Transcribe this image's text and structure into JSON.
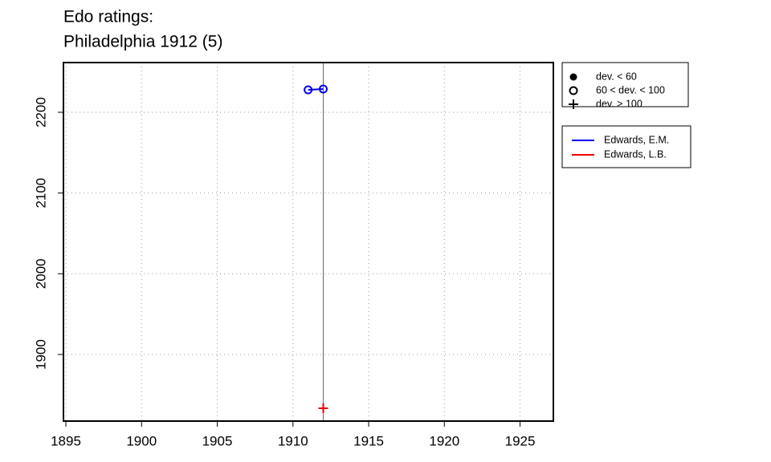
{
  "chart_data": {
    "type": "line",
    "title": "Edo ratings:",
    "subtitle": "Philadelphia 1912 (5)",
    "xlim": [
      1894.84,
      1927.2
    ],
    "ylim": [
      1817.5,
      2261.6
    ],
    "xticks": [
      1895,
      1900,
      1905,
      1910,
      1915,
      1920,
      1925
    ],
    "yticks": [
      1900,
      2000,
      2100,
      2200
    ],
    "grid": true,
    "vline": 1912,
    "marker_legend": [
      "dev. < 60",
      "60 < dev. < 100",
      "dev. > 100"
    ],
    "series": [
      {
        "name": "Edwards, E.M.",
        "color": "#0000ee",
        "x": [
          1911,
          1912
        ],
        "values": [
          2227.8,
          2228.8
        ],
        "markers": [
          1,
          1
        ]
      },
      {
        "name": "Edwards, L.B.",
        "color": "#ee0000",
        "x": [
          1912
        ],
        "values": [
          1833.4
        ],
        "markers": [
          2
        ]
      }
    ],
    "legend": "right"
  }
}
